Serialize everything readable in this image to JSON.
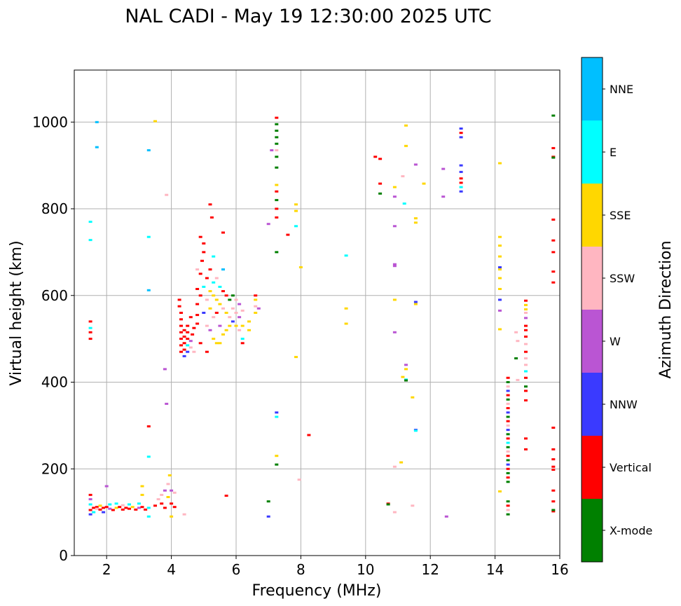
{
  "chart_data": {
    "type": "scatter",
    "title": "NAL CADI - May 19 12:30:00 2025 UTC",
    "xlabel": "Frequency (MHz)",
    "ylabel": "Virtual height (km)",
    "xlim": [
      1.0,
      16.0
    ],
    "ylim": [
      0,
      1120
    ],
    "xticks": [
      2,
      4,
      6,
      8,
      10,
      12,
      14,
      16
    ],
    "yticks": [
      0,
      200,
      400,
      600,
      800,
      1000
    ],
    "grid": true,
    "colorbar": {
      "label": "Azimuth Direction",
      "categories": [
        {
          "name": "X-mode",
          "color": "#008000"
        },
        {
          "name": "Vertical",
          "color": "#ff0000"
        },
        {
          "name": "NNW",
          "color": "#3a3aff"
        },
        {
          "name": "W",
          "color": "#ba55d3"
        },
        {
          "name": "SSW",
          "color": "#ffb6c1"
        },
        {
          "name": "SSE",
          "color": "#ffd700"
        },
        {
          "name": "E",
          "color": "#00ffff"
        },
        {
          "name": "NNE",
          "color": "#00bfff"
        }
      ]
    },
    "points": [
      [
        1.5,
        140,
        1
      ],
      [
        1.5,
        130,
        3
      ],
      [
        1.5,
        118,
        6
      ],
      [
        1.5,
        105,
        1
      ],
      [
        1.5,
        95,
        2
      ],
      [
        1.6,
        110,
        1
      ],
      [
        1.6,
        100,
        6
      ],
      [
        1.7,
        112,
        1
      ],
      [
        1.7,
        108,
        4
      ],
      [
        1.8,
        106,
        1
      ],
      [
        1.8,
        115,
        5
      ],
      [
        1.9,
        110,
        1
      ],
      [
        1.9,
        100,
        2
      ],
      [
        2.0,
        112,
        1
      ],
      [
        2.1,
        108,
        3
      ],
      [
        2.1,
        118,
        6
      ],
      [
        2.2,
        105,
        1
      ],
      [
        2.3,
        110,
        5
      ],
      [
        2.3,
        120,
        6
      ],
      [
        2.4,
        112,
        1
      ],
      [
        2.5,
        106,
        1
      ],
      [
        2.5,
        116,
        4
      ],
      [
        2.6,
        110,
        1
      ],
      [
        2.7,
        108,
        1
      ],
      [
        2.7,
        118,
        6
      ],
      [
        2.8,
        112,
        5
      ],
      [
        2.9,
        106,
        1
      ],
      [
        3.0,
        110,
        3
      ],
      [
        3.0,
        120,
        6
      ],
      [
        3.1,
        112,
        1
      ],
      [
        3.1,
        140,
        5
      ],
      [
        3.1,
        160,
        5
      ],
      [
        3.2,
        106,
        1
      ],
      [
        3.3,
        110,
        6
      ],
      [
        3.3,
        90,
        6
      ],
      [
        3.5,
        115,
        1
      ],
      [
        3.6,
        130,
        4
      ],
      [
        3.7,
        140,
        4
      ],
      [
        3.7,
        120,
        1
      ],
      [
        3.8,
        150,
        3
      ],
      [
        3.8,
        110,
        1
      ],
      [
        3.9,
        165,
        4
      ],
      [
        3.9,
        135,
        5
      ],
      [
        4.0,
        120,
        1
      ],
      [
        4.0,
        150,
        3
      ],
      [
        4.1,
        112,
        1
      ],
      [
        4.4,
        95,
        4
      ],
      [
        4.1,
        145,
        4
      ],
      [
        3.95,
        185,
        5
      ],
      [
        4.0,
        90,
        5
      ],
      [
        1.5,
        540,
        1
      ],
      [
        1.5,
        525,
        6
      ],
      [
        1.5,
        515,
        1
      ],
      [
        1.5,
        500,
        1
      ],
      [
        1.5,
        728,
        6
      ],
      [
        1.5,
        770,
        6
      ],
      [
        1.7,
        1000,
        7
      ],
      [
        1.7,
        942,
        7
      ],
      [
        2.0,
        160,
        3
      ],
      [
        3.3,
        935,
        7
      ],
      [
        3.3,
        735,
        6
      ],
      [
        3.3,
        612,
        7
      ],
      [
        3.3,
        298,
        1
      ],
      [
        3.3,
        228,
        6
      ],
      [
        3.5,
        1002,
        5
      ],
      [
        3.8,
        430,
        3
      ],
      [
        3.85,
        350,
        3
      ],
      [
        3.85,
        832,
        4
      ],
      [
        5.7,
        138,
        1
      ],
      [
        4.25,
        590,
        1
      ],
      [
        4.25,
        575,
        1
      ],
      [
        4.3,
        560,
        1
      ],
      [
        4.3,
        545,
        1
      ],
      [
        4.3,
        530,
        1
      ],
      [
        4.3,
        515,
        1
      ],
      [
        4.3,
        500,
        1
      ],
      [
        4.3,
        485,
        1
      ],
      [
        4.3,
        470,
        1
      ],
      [
        4.4,
        520,
        1
      ],
      [
        4.4,
        505,
        1
      ],
      [
        4.4,
        490,
        1
      ],
      [
        4.4,
        475,
        1
      ],
      [
        4.4,
        460,
        2
      ],
      [
        4.5,
        530,
        1
      ],
      [
        4.5,
        515,
        1
      ],
      [
        4.5,
        500,
        1
      ],
      [
        4.5,
        485,
        6
      ],
      [
        4.5,
        470,
        2
      ],
      [
        4.6,
        550,
        1
      ],
      [
        4.6,
        495,
        3
      ],
      [
        4.6,
        480,
        4
      ],
      [
        4.65,
        510,
        1
      ],
      [
        4.7,
        525,
        1
      ],
      [
        4.7,
        470,
        4
      ],
      [
        4.8,
        615,
        1
      ],
      [
        4.8,
        580,
        1
      ],
      [
        4.8,
        555,
        1
      ],
      [
        4.8,
        535,
        1
      ],
      [
        4.9,
        600,
        1
      ],
      [
        4.9,
        650,
        1
      ],
      [
        4.9,
        490,
        1
      ],
      [
        4.95,
        680,
        1
      ],
      [
        5.0,
        620,
        6
      ],
      [
        5.0,
        560,
        2
      ],
      [
        5.0,
        700,
        1
      ],
      [
        5.1,
        640,
        1
      ],
      [
        5.1,
        590,
        4
      ],
      [
        5.1,
        530,
        4
      ],
      [
        5.1,
        470,
        1
      ],
      [
        5.2,
        660,
        1
      ],
      [
        5.2,
        610,
        5
      ],
      [
        5.2,
        570,
        5
      ],
      [
        5.2,
        520,
        3
      ],
      [
        5.25,
        780,
        1
      ],
      [
        5.3,
        630,
        6
      ],
      [
        5.3,
        600,
        5
      ],
      [
        5.3,
        550,
        4
      ],
      [
        5.3,
        500,
        5
      ],
      [
        5.4,
        640,
        4
      ],
      [
        5.4,
        590,
        5
      ],
      [
        5.4,
        560,
        1
      ],
      [
        5.4,
        490,
        5
      ],
      [
        5.5,
        620,
        6
      ],
      [
        5.5,
        580,
        5
      ],
      [
        5.5,
        530,
        3
      ],
      [
        5.5,
        490,
        5
      ],
      [
        5.6,
        610,
        1
      ],
      [
        5.6,
        570,
        4
      ],
      [
        5.6,
        510,
        5
      ],
      [
        5.7,
        600,
        1
      ],
      [
        5.7,
        560,
        5
      ],
      [
        5.7,
        520,
        5
      ],
      [
        5.8,
        590,
        0
      ],
      [
        5.8,
        550,
        4
      ],
      [
        5.8,
        530,
        5
      ],
      [
        5.9,
        600,
        0
      ],
      [
        5.9,
        570,
        4
      ],
      [
        5.9,
        540,
        2
      ],
      [
        6.0,
        590,
        4
      ],
      [
        6.0,
        560,
        4
      ],
      [
        6.0,
        530,
        5
      ],
      [
        6.1,
        580,
        3
      ],
      [
        6.1,
        550,
        3
      ],
      [
        6.1,
        520,
        4
      ],
      [
        6.2,
        565,
        4
      ],
      [
        6.2,
        530,
        5
      ],
      [
        6.2,
        500,
        6
      ],
      [
        6.2,
        490,
        1
      ],
      [
        6.4,
        540,
        5
      ],
      [
        6.4,
        520,
        5
      ],
      [
        6.6,
        590,
        5
      ],
      [
        6.6,
        575,
        4
      ],
      [
        6.6,
        560,
        5
      ],
      [
        6.6,
        600,
        1
      ],
      [
        6.7,
        570,
        3
      ],
      [
        5.2,
        810,
        1
      ],
      [
        5.6,
        745,
        1
      ],
      [
        5.0,
        720,
        1
      ],
      [
        5.3,
        690,
        6
      ],
      [
        4.9,
        735,
        1
      ],
      [
        5.6,
        660,
        7
      ],
      [
        4.8,
        660,
        4
      ],
      [
        7.25,
        1010,
        1
      ],
      [
        7.25,
        995,
        0
      ],
      [
        7.25,
        980,
        0
      ],
      [
        7.25,
        965,
        0
      ],
      [
        7.25,
        950,
        0
      ],
      [
        7.25,
        935,
        4
      ],
      [
        7.25,
        920,
        0
      ],
      [
        7.25,
        895,
        0
      ],
      [
        7.25,
        855,
        5
      ],
      [
        7.25,
        840,
        1
      ],
      [
        7.25,
        820,
        0
      ],
      [
        7.25,
        800,
        1
      ],
      [
        7.25,
        780,
        1
      ],
      [
        7.25,
        700,
        0
      ],
      [
        7.25,
        330,
        2
      ],
      [
        7.25,
        320,
        6
      ],
      [
        7.25,
        230,
        5
      ],
      [
        7.25,
        210,
        0
      ],
      [
        7.1,
        935,
        3
      ],
      [
        7.0,
        765,
        3
      ],
      [
        7.0,
        125,
        0
      ],
      [
        7.0,
        90,
        2
      ],
      [
        7.6,
        740,
        1
      ],
      [
        7.85,
        810,
        5
      ],
      [
        7.85,
        795,
        5
      ],
      [
        7.85,
        760,
        6
      ],
      [
        7.85,
        458,
        5
      ],
      [
        7.95,
        175,
        4
      ],
      [
        8.0,
        665,
        5
      ],
      [
        8.25,
        278,
        1
      ],
      [
        9.4,
        692,
        6
      ],
      [
        9.4,
        570,
        5
      ],
      [
        9.4,
        535,
        5
      ],
      [
        10.3,
        920,
        1
      ],
      [
        10.45,
        915,
        1
      ],
      [
        10.45,
        858,
        1
      ],
      [
        10.45,
        835,
        0
      ],
      [
        10.7,
        120,
        1
      ],
      [
        10.7,
        118,
        0
      ],
      [
        10.9,
        205,
        4
      ],
      [
        10.9,
        100,
        4
      ],
      [
        10.9,
        668,
        3
      ],
      [
        10.9,
        672,
        3
      ],
      [
        10.9,
        760,
        3
      ],
      [
        10.9,
        850,
        5
      ],
      [
        10.9,
        828,
        3
      ],
      [
        10.9,
        590,
        5
      ],
      [
        10.9,
        515,
        3
      ],
      [
        11.15,
        412,
        5
      ],
      [
        11.15,
        875,
        4
      ],
      [
        11.2,
        812,
        6
      ],
      [
        11.25,
        992,
        5
      ],
      [
        11.25,
        945,
        5
      ],
      [
        11.25,
        440,
        3
      ],
      [
        11.25,
        430,
        5
      ],
      [
        11.25,
        406,
        6
      ],
      [
        11.25,
        404,
        0
      ],
      [
        11.45,
        365,
        5
      ],
      [
        11.45,
        115,
        4
      ],
      [
        11.55,
        902,
        3
      ],
      [
        11.55,
        778,
        5
      ],
      [
        11.55,
        768,
        5
      ],
      [
        11.55,
        585,
        2
      ],
      [
        11.55,
        580,
        5
      ],
      [
        11.55,
        290,
        2
      ],
      [
        11.55,
        288,
        6
      ],
      [
        11.8,
        858,
        5
      ],
      [
        11.1,
        215,
        5
      ],
      [
        12.4,
        892,
        3
      ],
      [
        12.4,
        828,
        3
      ],
      [
        12.5,
        90,
        3
      ],
      [
        12.95,
        985,
        2
      ],
      [
        12.95,
        975,
        1
      ],
      [
        12.95,
        965,
        2
      ],
      [
        12.95,
        900,
        2
      ],
      [
        12.95,
        885,
        2
      ],
      [
        12.95,
        870,
        1
      ],
      [
        12.95,
        860,
        1
      ],
      [
        12.95,
        850,
        6
      ],
      [
        12.95,
        840,
        2
      ],
      [
        14.15,
        905,
        5
      ],
      [
        14.15,
        735,
        5
      ],
      [
        14.15,
        715,
        5
      ],
      [
        14.15,
        690,
        5
      ],
      [
        14.15,
        665,
        2
      ],
      [
        14.15,
        660,
        5
      ],
      [
        14.15,
        640,
        5
      ],
      [
        14.15,
        615,
        5
      ],
      [
        14.15,
        590,
        2
      ],
      [
        14.15,
        565,
        3
      ],
      [
        14.15,
        522,
        5
      ],
      [
        14.15,
        148,
        5
      ],
      [
        14.4,
        410,
        1
      ],
      [
        14.4,
        400,
        0
      ],
      [
        14.4,
        390,
        4
      ],
      [
        14.4,
        380,
        2
      ],
      [
        14.4,
        370,
        1
      ],
      [
        14.4,
        360,
        0
      ],
      [
        14.4,
        350,
        4
      ],
      [
        14.4,
        340,
        1
      ],
      [
        14.4,
        330,
        2
      ],
      [
        14.4,
        320,
        0
      ],
      [
        14.4,
        310,
        1
      ],
      [
        14.4,
        300,
        4
      ],
      [
        14.4,
        290,
        2
      ],
      [
        14.4,
        280,
        0
      ],
      [
        14.4,
        270,
        1
      ],
      [
        14.4,
        260,
        6
      ],
      [
        14.4,
        250,
        0
      ],
      [
        14.4,
        240,
        4
      ],
      [
        14.4,
        230,
        1
      ],
      [
        14.4,
        220,
        0
      ],
      [
        14.4,
        210,
        2
      ],
      [
        14.4,
        200,
        1
      ],
      [
        14.4,
        190,
        0
      ],
      [
        14.4,
        180,
        1
      ],
      [
        14.4,
        170,
        0
      ],
      [
        14.4,
        125,
        0
      ],
      [
        14.4,
        115,
        1
      ],
      [
        14.4,
        105,
        4
      ],
      [
        14.4,
        95,
        0
      ],
      [
        14.65,
        515,
        4
      ],
      [
        14.65,
        455,
        0
      ],
      [
        14.7,
        495,
        4
      ],
      [
        14.7,
        405,
        4
      ],
      [
        14.95,
        588,
        1
      ],
      [
        14.95,
        578,
        5
      ],
      [
        14.95,
        568,
        5
      ],
      [
        14.95,
        560,
        4
      ],
      [
        14.95,
        548,
        3
      ],
      [
        14.95,
        530,
        1
      ],
      [
        14.95,
        520,
        1
      ],
      [
        14.95,
        505,
        1
      ],
      [
        14.95,
        488,
        4
      ],
      [
        14.95,
        470,
        1
      ],
      [
        14.95,
        455,
        4
      ],
      [
        14.95,
        440,
        4
      ],
      [
        14.95,
        425,
        6
      ],
      [
        14.95,
        410,
        1
      ],
      [
        14.95,
        390,
        0
      ],
      [
        14.95,
        380,
        1
      ],
      [
        14.95,
        358,
        1
      ],
      [
        14.95,
        270,
        1
      ],
      [
        14.95,
        245,
        1
      ],
      [
        15.8,
        1015,
        0
      ],
      [
        15.8,
        940,
        1
      ],
      [
        15.8,
        920,
        1
      ],
      [
        15.8,
        918,
        0
      ],
      [
        15.8,
        775,
        1
      ],
      [
        15.8,
        727,
        1
      ],
      [
        15.8,
        700,
        1
      ],
      [
        15.8,
        655,
        1
      ],
      [
        15.8,
        630,
        1
      ],
      [
        15.8,
        295,
        1
      ],
      [
        15.8,
        245,
        1
      ],
      [
        15.8,
        222,
        1
      ],
      [
        15.8,
        205,
        1
      ],
      [
        15.8,
        198,
        1
      ],
      [
        15.8,
        150,
        1
      ],
      [
        15.8,
        125,
        1
      ],
      [
        15.8,
        102,
        1
      ],
      [
        15.8,
        105,
        0
      ]
    ]
  }
}
